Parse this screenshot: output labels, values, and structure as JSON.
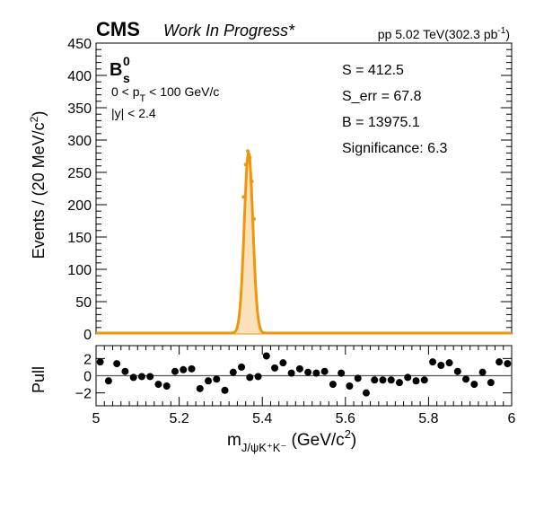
{
  "header": {
    "experiment": "CMS",
    "status": "Work In Progress*",
    "energy_prefix": "pp 5.02 TeV(302.3 pb",
    "energy_sup": "-1",
    "energy_suffix": ")"
  },
  "particle": {
    "base": "B",
    "sup": "0",
    "sub": "s"
  },
  "cuts": {
    "pt_prefix": "0 < p",
    "pt_sub": "T",
    "pt_suffix": " < 100 GeV/c",
    "y": "|y| < 2.4"
  },
  "stats": {
    "S": "S = 412.5",
    "S_err": "S_err = 67.8",
    "B": "B = 13975.1",
    "significance": "Significance: 6.3"
  },
  "colors": {
    "fit": "#f0960c",
    "signal_fill": "#f0960c",
    "points": "#000000",
    "frame": "#000000"
  },
  "chart_data": [
    {
      "type": "line",
      "name": "mass-fit",
      "ylabel_prefix": "Events / (20 MeV/c",
      "ylabel_sup": "2",
      "ylabel_suffix": ")",
      "xlim": [
        5.0,
        6.0
      ],
      "ylim": [
        0,
        450
      ],
      "yticks": [
        0,
        50,
        100,
        150,
        200,
        250,
        300,
        350,
        400,
        450
      ],
      "ytick_labels": [
        "0",
        "50",
        "100",
        "150",
        "200",
        "250",
        "300",
        "350",
        "400",
        "450"
      ],
      "fit": {
        "mean": 5.367,
        "sigma": 0.0104,
        "peak_above_background": 279,
        "background_level": 1.4
      },
      "data_points": {
        "x": [
          5.355,
          5.36,
          5.365,
          5.37,
          5.375,
          5.38
        ],
        "y": [
          212,
          262,
          283,
          273,
          236,
          178
        ]
      }
    },
    {
      "type": "scatter",
      "name": "pull",
      "ylabel": "Pull",
      "xlim": [
        5.0,
        6.0
      ],
      "ylim": [
        -3.5,
        3.5
      ],
      "yticks": [
        -2,
        0,
        2
      ],
      "ytick_labels": [
        "−2",
        "0",
        "2"
      ],
      "xticks": [
        5.0,
        5.2,
        5.4,
        5.6,
        5.8,
        6.0
      ],
      "xtick_labels": [
        "5",
        "5.2",
        "5.4",
        "5.6",
        "5.8",
        "6"
      ],
      "x": [
        5.01,
        5.03,
        5.05,
        5.07,
        5.09,
        5.11,
        5.13,
        5.15,
        5.17,
        5.19,
        5.21,
        5.23,
        5.25,
        5.27,
        5.29,
        5.31,
        5.33,
        5.35,
        5.37,
        5.39,
        5.41,
        5.43,
        5.45,
        5.47,
        5.49,
        5.51,
        5.53,
        5.55,
        5.57,
        5.59,
        5.61,
        5.63,
        5.65,
        5.67,
        5.69,
        5.71,
        5.73,
        5.75,
        5.77,
        5.79,
        5.81,
        5.83,
        5.85,
        5.87,
        5.89,
        5.91,
        5.93,
        5.95,
        5.97,
        5.99
      ],
      "y": [
        1.6,
        -0.6,
        1.4,
        0.5,
        -0.2,
        -0.1,
        -0.1,
        -1.0,
        -1.2,
        0.5,
        0.7,
        0.8,
        -1.5,
        -0.6,
        -0.4,
        -1.7,
        0.4,
        1.0,
        -0.2,
        -0.1,
        2.3,
        0.9,
        1.5,
        0.3,
        0.8,
        0.4,
        0.3,
        0.5,
        -1.0,
        0.3,
        -1.2,
        -0.3,
        -2.0,
        -0.5,
        -0.5,
        -0.5,
        -0.8,
        -0.2,
        -0.6,
        -0.5,
        1.6,
        1.2,
        1.5,
        0.5,
        -0.4,
        -1.0,
        0.4,
        -0.8,
        1.6,
        1.4
      ],
      "xlabel_main": "m",
      "xlabel_sub": "J/ψK⁺K⁻",
      "xlabel_unit_prefix": " (GeV/c",
      "xlabel_unit_sup": "2",
      "xlabel_unit_suffix": ")"
    }
  ]
}
